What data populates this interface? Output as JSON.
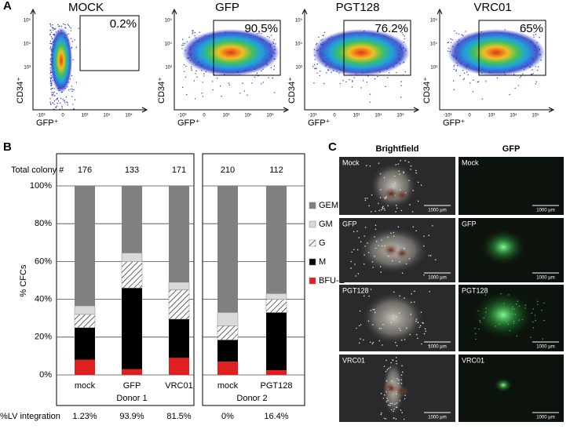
{
  "panel_a": {
    "label": "A",
    "y_label": "CD34⁺",
    "x_label": "GFP⁺",
    "x_ticks": [
      "-10³",
      "0",
      "10³",
      "10⁴",
      "10⁵"
    ],
    "y_ticks": [
      "10⁵",
      "10⁴",
      "10³"
    ],
    "plots": [
      {
        "title": "MOCK",
        "gate": "0.2%"
      },
      {
        "title": "GFP",
        "gate": "90.5%"
      },
      {
        "title": "PGT128",
        "gate": "76.2%"
      },
      {
        "title": "VRC01",
        "gate": "65%"
      }
    ]
  },
  "chart_data": {
    "type": "bar",
    "stacked": true,
    "label": "B",
    "ylabel": "% CFCs",
    "categories": [
      "mock",
      "GFP",
      "VRC01",
      "mock",
      "PGT128"
    ],
    "groups": [
      {
        "name": "Donor 1",
        "count": 3
      },
      {
        "name": "Donor 2",
        "count": 2
      }
    ],
    "series": [
      {
        "name": "BFU-E",
        "color": "#e02020",
        "values": [
          8,
          3,
          9,
          7,
          2.5
        ]
      },
      {
        "name": "M",
        "color": "#000000",
        "values": [
          17,
          43,
          20.5,
          11.5,
          30.5
        ]
      },
      {
        "name": "G",
        "color": "hatch",
        "values": [
          7,
          14,
          15.5,
          7.5,
          7
        ]
      },
      {
        "name": "GM",
        "color": "#d9d9d9",
        "values": [
          4.5,
          4.5,
          4,
          7,
          3
        ]
      },
      {
        "name": "GEMM",
        "color": "#808080",
        "values": [
          63.5,
          35.5,
          51,
          67,
          57
        ]
      }
    ],
    "ylim": [
      0,
      100
    ],
    "yticks": [
      {
        "value": 0,
        "label": "0%"
      },
      {
        "value": 20,
        "label": "20%"
      },
      {
        "value": 40,
        "label": "40%"
      },
      {
        "value": 60,
        "label": "60%"
      },
      {
        "value": 80,
        "label": "80%"
      },
      {
        "value": 100,
        "label": "100%"
      }
    ],
    "grid": true,
    "total_colony_label": "Total colony #",
    "total_colony": [
      176,
      133,
      171,
      210,
      112
    ],
    "integration_label": "%LV integration",
    "integration": [
      "1.23%",
      "93.9%",
      "81.5%",
      "0%",
      "16.4%"
    ]
  },
  "panel_c": {
    "label": "C",
    "columns": [
      "Brightfield",
      "GFP"
    ],
    "rows": [
      {
        "left": "Mock",
        "right": "Mock"
      },
      {
        "left": "GFP",
        "right": "GFP"
      },
      {
        "left": "PGT128",
        "right": "PGT128"
      },
      {
        "left": "VRC01",
        "right": "VRC01"
      }
    ],
    "scale_bar": "1000 µm"
  }
}
